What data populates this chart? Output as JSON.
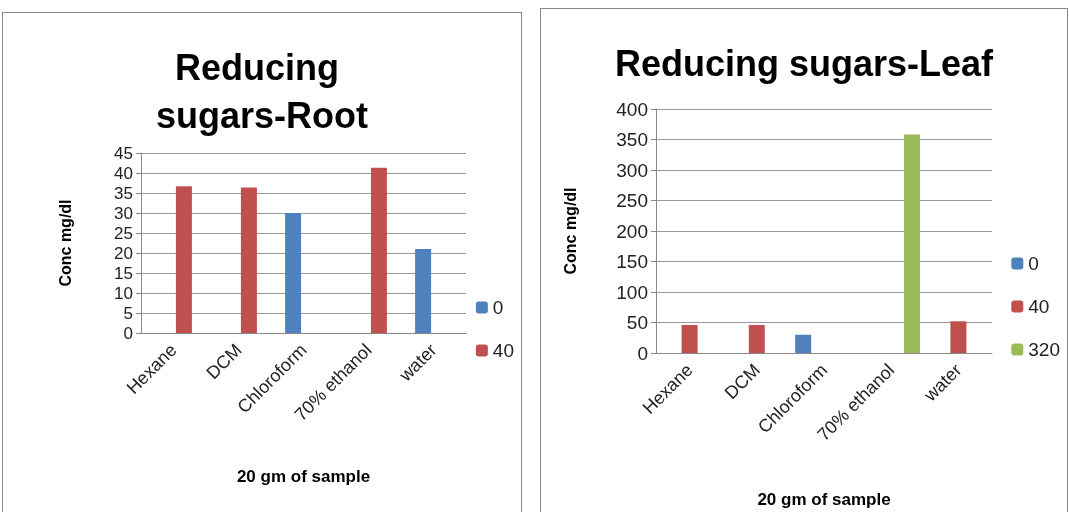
{
  "chart_data": [
    {
      "type": "bar",
      "title": "Reducing sugars-Root",
      "xlabel": "20 gm of sample",
      "ylabel": "Conc mg/dl",
      "categories": [
        "Hexane",
        "DCM",
        "Chloroform",
        "70% ethanol",
        "water"
      ],
      "series": [
        {
          "name": "0",
          "color": "#4f81bd",
          "values": [
            null,
            null,
            30,
            null,
            21
          ]
        },
        {
          "name": "40",
          "color": "#c0504d",
          "values": [
            36.7,
            36.4,
            null,
            41.3,
            null
          ]
        }
      ],
      "ylim": [
        0,
        45
      ],
      "yticks": [
        0,
        5,
        10,
        15,
        20,
        25,
        30,
        35,
        40,
        45
      ],
      "grid": "y",
      "legend": "right"
    },
    {
      "type": "bar",
      "title": "Reducing sugars-Leaf",
      "xlabel": "20 gm of sample",
      "ylabel": "Conc mg/dl",
      "categories": [
        "Hexane",
        "DCM",
        "Chloroform",
        "70% ethanol",
        "water"
      ],
      "series": [
        {
          "name": "0",
          "color": "#4f81bd",
          "values": [
            null,
            null,
            30,
            null,
            null
          ]
        },
        {
          "name": "40",
          "color": "#c0504d",
          "values": [
            46,
            46,
            null,
            null,
            52
          ]
        },
        {
          "name": "320",
          "color": "#9bbb59",
          "values": [
            null,
            null,
            null,
            358,
            null
          ]
        }
      ],
      "ylim": [
        0,
        400
      ],
      "yticks": [
        0,
        50,
        100,
        150,
        200,
        250,
        300,
        350,
        400
      ],
      "grid": "y",
      "legend": "right"
    }
  ]
}
